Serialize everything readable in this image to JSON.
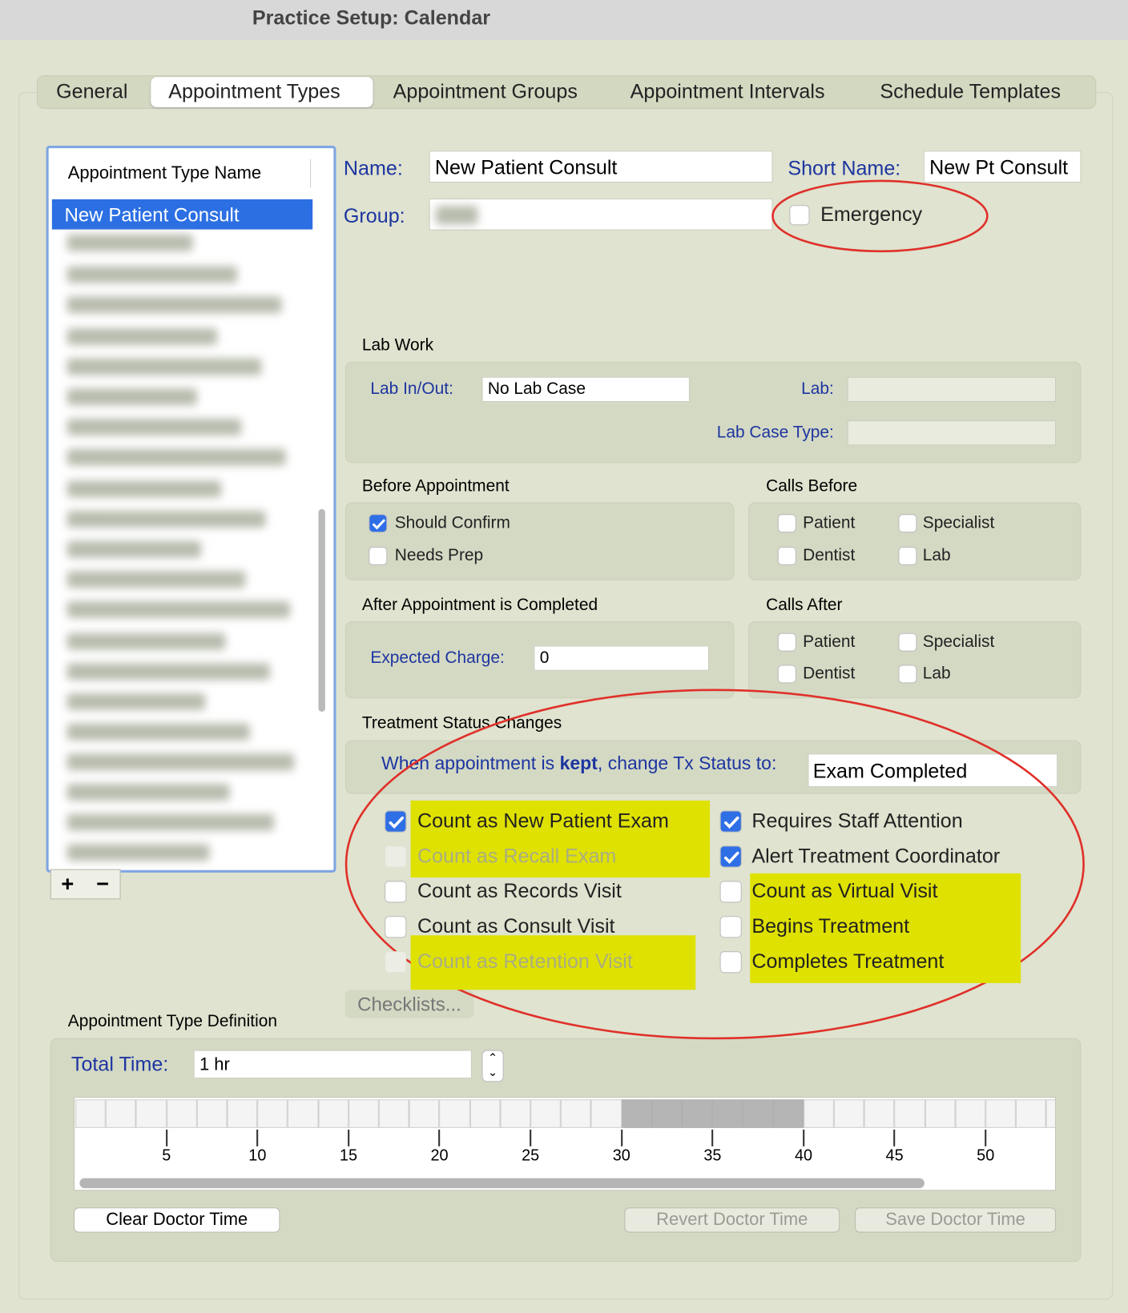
{
  "window_title": "Practice Setup: Calendar",
  "tabs": [
    {
      "label": "General",
      "selected": false
    },
    {
      "label": "Appointment Types",
      "selected": true
    },
    {
      "label": "Appointment Groups",
      "selected": false
    },
    {
      "label": "Appointment Intervals",
      "selected": false
    },
    {
      "label": "Schedule Templates",
      "selected": false
    }
  ],
  "type_list": {
    "header": "Appointment Type Name",
    "items": [
      "New Patient Consult"
    ]
  },
  "name": {
    "label": "Name:",
    "value": "New Patient Consult"
  },
  "short_name": {
    "label": "Short Name:",
    "value": "New Pt Consult"
  },
  "group": {
    "label": "Group:"
  },
  "emergency": {
    "label": "Emergency",
    "checked": false
  },
  "lab_work": {
    "title": "Lab Work",
    "lab_in_out": {
      "label": "Lab In/Out:",
      "value": "No Lab Case"
    },
    "lab": {
      "label": "Lab:"
    },
    "lab_case_type": {
      "label": "Lab Case Type:"
    }
  },
  "before": {
    "title": "Before Appointment",
    "options": [
      {
        "label": "Should Confirm",
        "checked": true
      },
      {
        "label": "Needs Prep",
        "checked": false
      }
    ]
  },
  "calls_before": {
    "title": "Calls Before",
    "options": [
      {
        "label": "Patient",
        "checked": false
      },
      {
        "label": "Specialist",
        "checked": false
      },
      {
        "label": "Dentist",
        "checked": false
      },
      {
        "label": "Lab",
        "checked": false
      }
    ]
  },
  "after": {
    "title": "After Appointment is Completed",
    "expected_charge": {
      "label": "Expected Charge:",
      "value": "0"
    }
  },
  "calls_after": {
    "title": "Calls After",
    "options": [
      {
        "label": "Patient",
        "checked": false
      },
      {
        "label": "Specialist",
        "checked": false
      },
      {
        "label": "Dentist",
        "checked": false
      },
      {
        "label": "Lab",
        "checked": false
      }
    ]
  },
  "treatment": {
    "title": "Treatment Status Changes",
    "prompt_before": "When appointment is",
    "prompt_bold": "kept",
    "prompt_after": ", change Tx Status to:",
    "status": "Exam Completed",
    "left_options": [
      {
        "label": "Count as New Patient Exam",
        "checked": true,
        "disabled": false,
        "highlighted": true
      },
      {
        "label": "Count as Recall Exam",
        "checked": false,
        "disabled": true,
        "highlighted": true
      },
      {
        "label": "Count as Records Visit",
        "checked": false,
        "disabled": false,
        "highlighted": false
      },
      {
        "label": "Count as Consult Visit",
        "checked": false,
        "disabled": false,
        "highlighted": false
      },
      {
        "label": "Count as Retention Visit",
        "checked": false,
        "disabled": true,
        "highlighted": true
      }
    ],
    "right_options": [
      {
        "label": "Requires Staff Attention",
        "checked": true,
        "disabled": false,
        "highlighted": false
      },
      {
        "label": "Alert Treatment Coordinator",
        "checked": true,
        "disabled": false,
        "highlighted": false
      },
      {
        "label": "Count as Virtual Visit",
        "checked": false,
        "disabled": false,
        "highlighted": true
      },
      {
        "label": "Begins Treatment",
        "checked": false,
        "disabled": false,
        "highlighted": true
      },
      {
        "label": "Completes Treatment",
        "checked": false,
        "disabled": false,
        "highlighted": true
      }
    ]
  },
  "checklists_button": "Checklists...",
  "definition": {
    "title": "Appointment Type Definition",
    "total_time": {
      "label": "Total Time:",
      "value": "1 hr"
    },
    "ticks": [
      5,
      10,
      15,
      20,
      25,
      30,
      35,
      40,
      45,
      50
    ],
    "doctor_time": {
      "start": 30,
      "end": 40
    },
    "buttons": [
      {
        "label": "Clear Doctor Time",
        "disabled": false
      },
      {
        "label": "Revert Doctor Time",
        "disabled": true
      },
      {
        "label": "Save Doctor Time",
        "disabled": true
      }
    ]
  }
}
